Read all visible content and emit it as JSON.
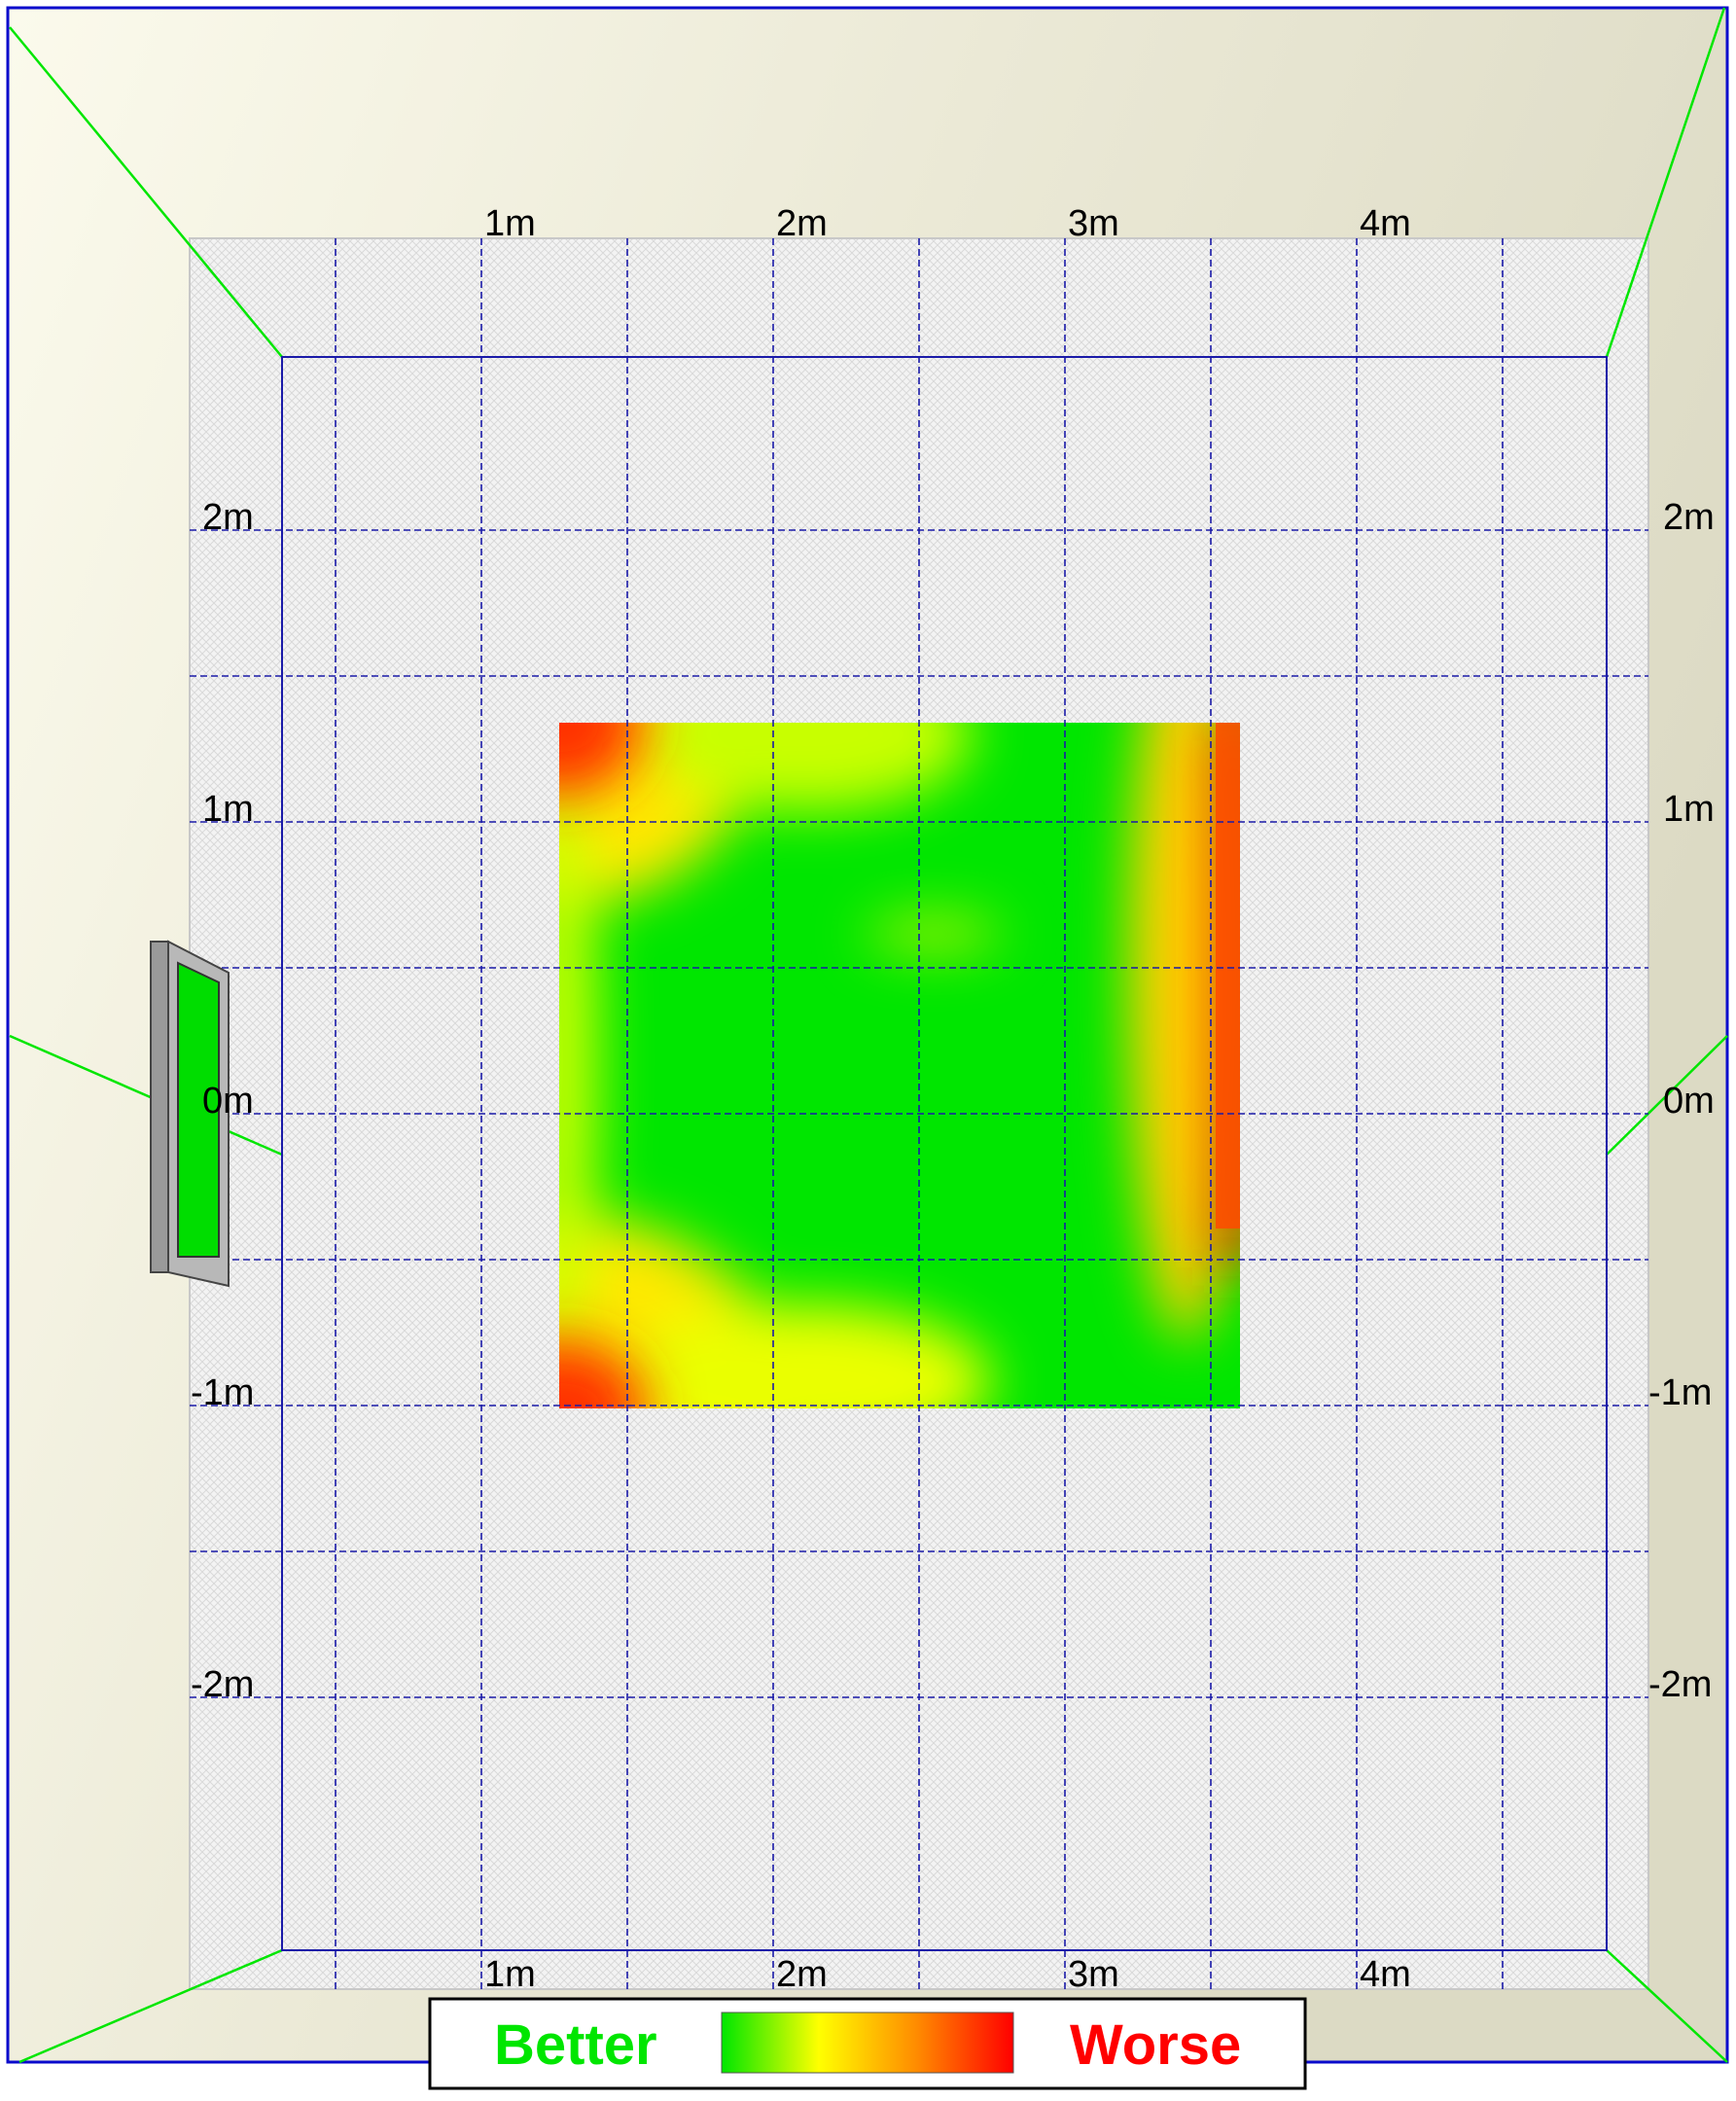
{
  "top_axis_labels": [
    "1m",
    "2m",
    "3m",
    "4m"
  ],
  "bottom_axis_labels": [
    "1m",
    "2m",
    "3m",
    "4m"
  ],
  "left_axis_labels": [
    "2m",
    "1m",
    "0m",
    "-1m",
    "-2m"
  ],
  "right_axis_labels": [
    "2m",
    "1m",
    "0m",
    "-1m",
    "-2m"
  ],
  "legend": {
    "better_label": "Better",
    "worse_label": "Worse",
    "better_color": "#00e600",
    "worse_color": "#ff0000",
    "gradient_colors": [
      "#00e600",
      "#ffff00",
      "#ff8c00",
      "#ff0000"
    ]
  },
  "colors": {
    "wall": "#e8e6d2",
    "wall_highlight": "#f8f7e8",
    "floor": "#f0f0f0",
    "grid": "#1a1aa8",
    "wall_edge": "#00e600",
    "frame_border": "#0a0acc"
  },
  "icons": {
    "speaker": "window-speaker-icon"
  }
}
